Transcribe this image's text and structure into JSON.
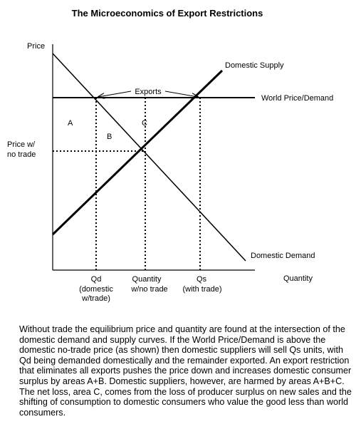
{
  "title": "The Microeconomics of Export Restrictions",
  "axes": {
    "y_label": "Price",
    "x_label": "Quantity"
  },
  "curves": {
    "supply_label": "Domestic Supply",
    "demand_label": "Domestic Demand",
    "world_label": "World Price/Demand"
  },
  "annotations": {
    "exports": "Exports",
    "price_no_trade_line1": "Price w/",
    "price_no_trade_line2": "no trade",
    "area_a": "A",
    "area_b": "B",
    "area_c": "C"
  },
  "x_markers": {
    "qd_line1": "Qd",
    "qd_line2": "(domestic",
    "qd_line3": "w/trade)",
    "qnt_line1": "Quantity",
    "qnt_line2": "w/no trade",
    "qs_line1": "Qs",
    "qs_line2": "(with trade)"
  },
  "caption": "Without trade the equilibrium price and quantity are found at the intersection of the domestic demand and supply curves. If the World Price/Demand is above the domestic no-trade price (as shown) then domestic suppliers will sell Qs units, with Qd being demanded domestically and the remainder exported. An export restriction that eliminates all exports pushes the price down and increases domestic consumer surplus by areas A+B. Domestic suppliers, however, are harmed by areas A+B+C. The net loss, area C, comes from the loss of producer surplus on new sales and the shifting of consumption to domestic consumers who value the good less than world consumers."
}
